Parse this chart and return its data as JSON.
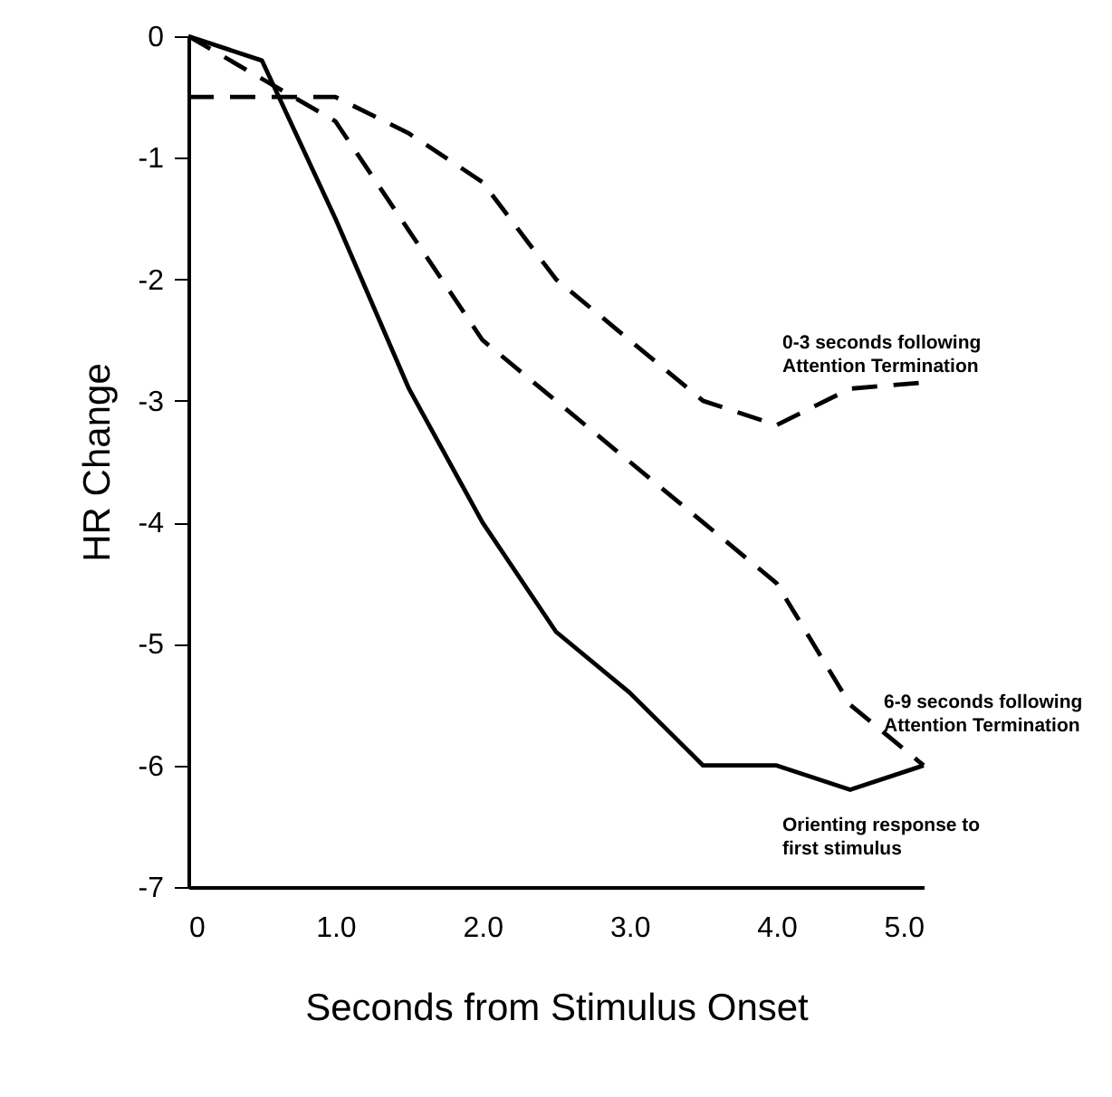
{
  "chart_data": {
    "type": "line",
    "xlabel": "Seconds from Stimulus Onset",
    "ylabel": "HR Change",
    "x": [
      0,
      0.5,
      1.0,
      1.5,
      2.0,
      2.5,
      3.0,
      3.5,
      4.0,
      4.5,
      5.0
    ],
    "series": [
      {
        "name": "0-3 seconds following\nAttention Termination",
        "color": "#000000",
        "line_style": "dashed",
        "values": [
          -0.5,
          -0.5,
          -0.5,
          -0.8,
          -1.2,
          -2.0,
          -2.5,
          -3.0,
          -3.2,
          -2.9,
          -2.85
        ]
      },
      {
        "name": "6-9 seconds following\nAttention Termination",
        "color": "#000000",
        "line_style": "dashed",
        "values": [
          0,
          -0.35,
          -0.7,
          -1.6,
          -2.5,
          -3.0,
          -3.5,
          -4.0,
          -4.5,
          -5.5,
          -6.0
        ]
      },
      {
        "name": "Orienting response to\nfirst stimulus",
        "color": "#000000",
        "line_style": "solid",
        "values": [
          0,
          -0.2,
          -1.5,
          -2.9,
          -4.0,
          -4.9,
          -5.4,
          -6.0,
          -6.0,
          -6.2,
          -6.0
        ]
      }
    ],
    "xlim": [
      0,
      5
    ],
    "xticks": [
      0,
      {
        "value": 1,
        "label": "1.0"
      },
      {
        "value": 2,
        "label": "2.0"
      },
      {
        "value": 3,
        "label": "3.0"
      },
      {
        "value": 4,
        "label": "4.0"
      },
      {
        "value": 5,
        "label": "5.0"
      }
    ],
    "ylim": [
      -7,
      0
    ],
    "yticks": [
      -7,
      -6,
      -5,
      -4,
      -3,
      -2,
      -1,
      0
    ],
    "grid": false,
    "marker": "none"
  }
}
